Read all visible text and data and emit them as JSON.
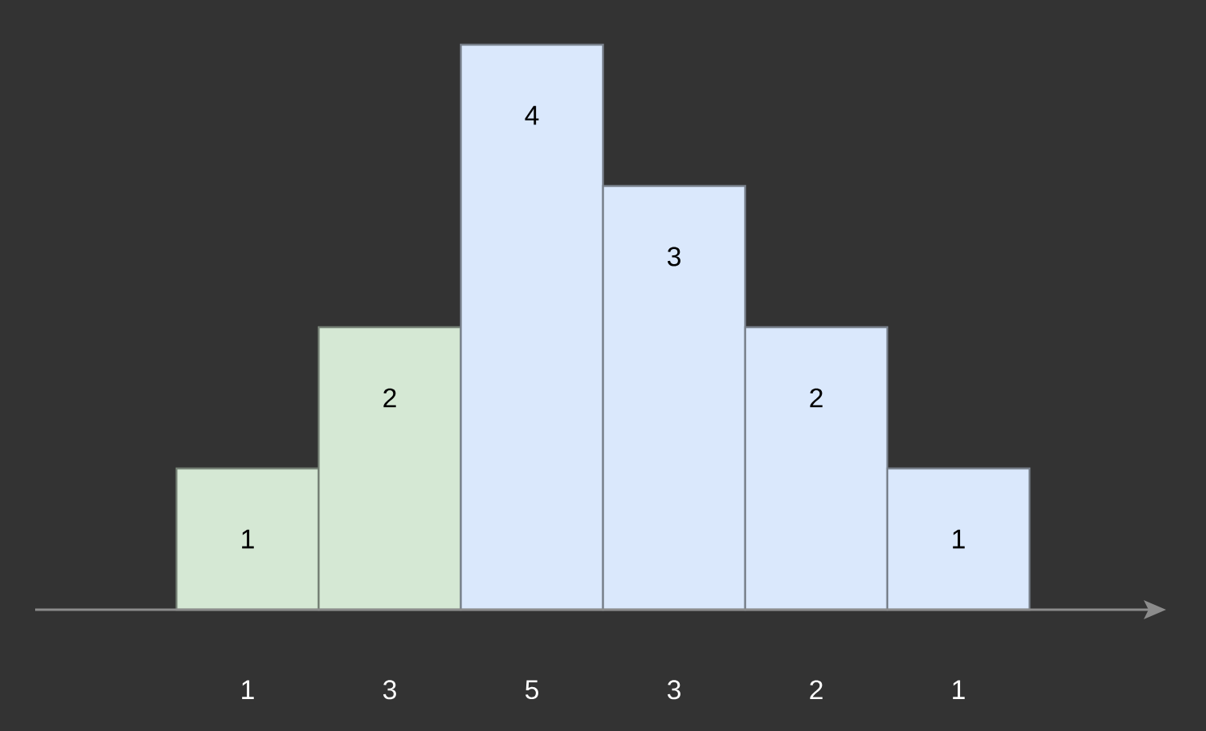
{
  "chart_data": {
    "type": "bar",
    "categories": [
      "1",
      "3",
      "5",
      "3",
      "2",
      "1"
    ],
    "values": [
      1,
      2,
      4,
      3,
      2,
      1
    ],
    "colors": [
      "#d5e8d4",
      "#d5e8d4",
      "#dae8fc",
      "#dae8fc",
      "#dae8fc",
      "#dae8fc"
    ],
    "data_labels": true
  }
}
